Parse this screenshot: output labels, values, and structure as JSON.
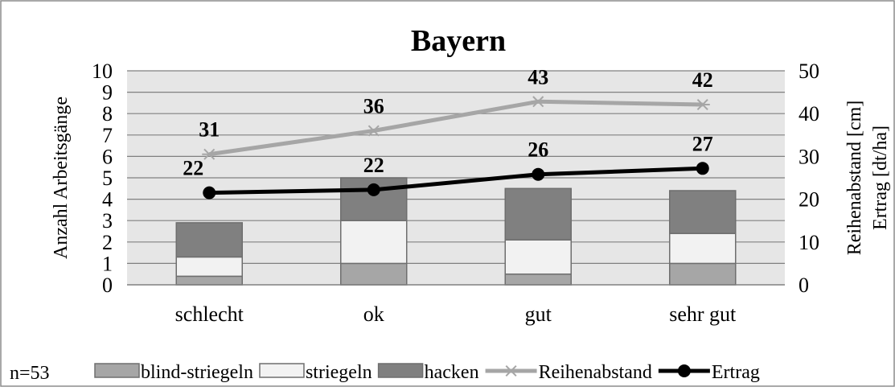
{
  "chart_data": {
    "type": "bar",
    "title": "Bayern",
    "categories": [
      "schlecht",
      "ok",
      "gut",
      "sehr gut"
    ],
    "ylabel": "Anzahl Arbeitsgänge",
    "y2label_1": "Reihenabstand [cm]",
    "y2label_2": "Ertrag [dt/ha]",
    "ylim": [
      0,
      10
    ],
    "y2lim": [
      0,
      50
    ],
    "yticks": [
      0,
      1,
      2,
      3,
      4,
      5,
      6,
      7,
      8,
      9,
      10
    ],
    "y2ticks": [
      0,
      10,
      20,
      30,
      40,
      50
    ],
    "grid": true,
    "legend_note": "n=53",
    "legend_position": "bottom",
    "series": [
      {
        "name": "blind-striegeln",
        "kind": "stacked-bar",
        "axis": "left",
        "color": "#a6a6a6",
        "values": [
          0.4,
          1.0,
          0.5,
          1.0
        ]
      },
      {
        "name": "striegeln",
        "kind": "stacked-bar",
        "axis": "left",
        "color": "#f2f2f2",
        "values": [
          0.9,
          2.0,
          1.6,
          1.4
        ]
      },
      {
        "name": "hacken",
        "kind": "stacked-bar",
        "axis": "left",
        "color": "#808080",
        "values": [
          1.6,
          2.0,
          2.4,
          2.0
        ]
      },
      {
        "name": "Reihenabstand",
        "kind": "line",
        "marker": "star",
        "axis": "right",
        "color": "#a6a6a6",
        "values": [
          30.5,
          36,
          42.8,
          42.1
        ],
        "labels": [
          "31",
          "36",
          "43",
          "42"
        ]
      },
      {
        "name": "Ertrag",
        "kind": "line",
        "marker": "circle",
        "axis": "right",
        "color": "#000000",
        "values": [
          21.5,
          22.2,
          25.8,
          27.2
        ],
        "labels": [
          "22",
          "22",
          "26",
          "27"
        ]
      }
    ]
  }
}
